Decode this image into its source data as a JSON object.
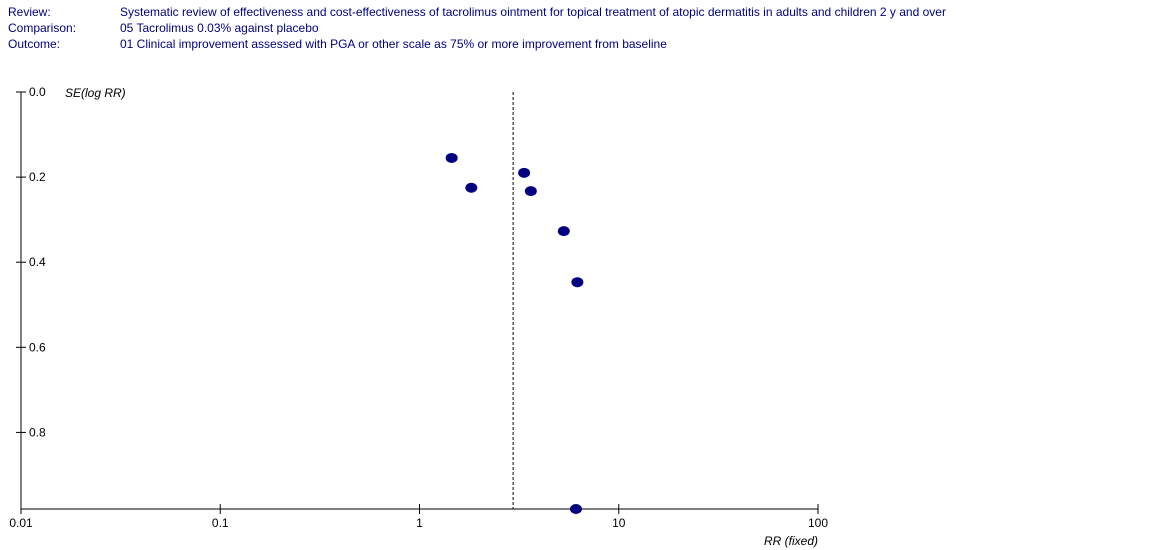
{
  "header": {
    "review_label": "Review:",
    "review_value": "Systematic review of effectiveness and cost-effectiveness of tacrolimus ointment for topical treatment of atopic dermatitis in adults and children 2 y and over",
    "comparison_label": "Comparison:",
    "comparison_value": "05 Tacrolimus 0.03% against placebo",
    "outcome_label": "Outcome:",
    "outcome_value": "01 Clinical improvement assessed with PGA or other scale as 75% or more improvement from baseline"
  },
  "colors": {
    "header_text": "#000080",
    "points": "#000080",
    "axis": "#000000"
  },
  "chart_data": {
    "type": "scatter",
    "title": "",
    "xlabel": "RR (fixed)",
    "ylabel": "SE(log RR)",
    "x_scale": "log",
    "xlim": [
      0.01,
      100
    ],
    "ylim": [
      0.0,
      0.98
    ],
    "y_inverted": true,
    "x_ticks": [
      0.01,
      0.1,
      1,
      10,
      100
    ],
    "x_tick_labels": [
      "0.01",
      "0.1",
      "1",
      "10",
      "100"
    ],
    "y_ticks": [
      0.0,
      0.2,
      0.4,
      0.6,
      0.8
    ],
    "y_tick_labels": [
      "0.0",
      "0.2",
      "0.4",
      "0.6",
      "0.8"
    ],
    "reference_line_x": 2.95,
    "grid": false,
    "points": [
      {
        "x": 1.45,
        "y": 0.155
      },
      {
        "x": 1.82,
        "y": 0.225
      },
      {
        "x": 3.35,
        "y": 0.19
      },
      {
        "x": 3.62,
        "y": 0.233
      },
      {
        "x": 5.3,
        "y": 0.327
      },
      {
        "x": 6.2,
        "y": 0.447
      },
      {
        "x": 6.1,
        "y": 0.98
      }
    ]
  }
}
